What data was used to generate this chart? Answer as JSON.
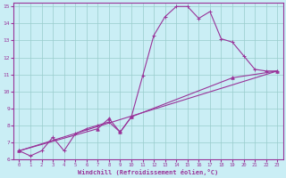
{
  "xlabel": "Windchill (Refroidissement éolien,°C)",
  "bg_color": "#caeef5",
  "grid_color": "#99cccc",
  "line_color": "#993399",
  "spine_color": "#993399",
  "xlim": [
    -0.5,
    23.5
  ],
  "ylim": [
    6,
    15.2
  ],
  "xticks": [
    0,
    1,
    2,
    3,
    4,
    5,
    6,
    7,
    8,
    9,
    10,
    11,
    12,
    13,
    14,
    15,
    16,
    17,
    18,
    19,
    20,
    21,
    22,
    23
  ],
  "yticks": [
    6,
    7,
    8,
    9,
    10,
    11,
    12,
    13,
    14,
    15
  ],
  "line1_x": [
    0,
    1,
    2,
    3,
    4,
    5,
    6,
    7,
    8,
    9,
    10,
    11,
    12,
    13,
    14,
    15,
    16,
    17,
    18,
    19,
    20,
    21,
    22,
    23
  ],
  "line1_y": [
    6.5,
    6.2,
    6.5,
    7.3,
    6.5,
    7.5,
    7.8,
    8.0,
    8.2,
    7.6,
    8.5,
    10.9,
    13.3,
    14.4,
    15.0,
    15.0,
    14.3,
    14.7,
    13.1,
    12.9,
    12.1,
    11.3,
    11.2,
    11.2
  ],
  "line2_x": [
    0,
    23
  ],
  "line2_y": [
    6.5,
    11.2
  ],
  "line3_x": [
    0,
    7,
    8,
    9,
    10,
    19,
    23
  ],
  "line3_y": [
    6.5,
    7.8,
    8.4,
    7.6,
    8.5,
    10.8,
    11.2
  ],
  "marker1": "+",
  "marker3": "^",
  "lw": 0.8,
  "ms1": 3,
  "ms3": 2.5
}
